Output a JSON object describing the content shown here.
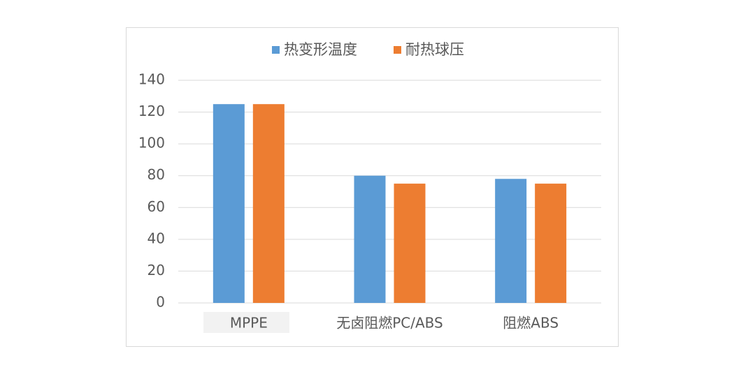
{
  "chart_data": {
    "type": "bar",
    "categories": [
      "MPPE",
      "无卤阻燃PC/ABS",
      "阻燃ABS"
    ],
    "series": [
      {
        "name": "热变形温度",
        "color": "#5b9bd5",
        "values": [
          125,
          80,
          78
        ]
      },
      {
        "name": "耐热球压",
        "color": "#ed7d31",
        "values": [
          125,
          75,
          75
        ]
      }
    ],
    "ylim": [
      0,
      140
    ],
    "yticks": [
      0,
      20,
      40,
      60,
      80,
      100,
      120,
      140
    ],
    "grid": true,
    "legend": "top"
  }
}
